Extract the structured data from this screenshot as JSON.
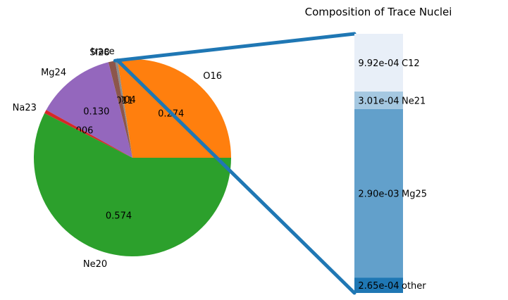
{
  "chart_data": [
    {
      "type": "pie",
      "labels": [
        "O16",
        "trace",
        "Si28",
        "Mg24",
        "Na23",
        "Ne20"
      ],
      "values": [
        0.274,
        0.004,
        0.011,
        0.13,
        0.006,
        0.574
      ],
      "value_labels": [
        "0.274",
        "0.004",
        "0.011",
        "0.130",
        "0.006",
        "0.574"
      ],
      "colors": [
        "#ff7f0e",
        "#8c8c8c",
        "#8c564b",
        "#9467bd",
        "#d62728",
        "#2ca02c"
      ],
      "start_angle_deg": 0,
      "direction": "counterclockwise"
    },
    {
      "type": "bar",
      "stacked": true,
      "title": "Composition of Trace Nuclei",
      "categories": [
        "other",
        "Mg25",
        "Ne21",
        "C12"
      ],
      "values": [
        0.000265,
        0.0029,
        0.000301,
        0.000992
      ],
      "value_labels": [
        "2.65e-04",
        "2.90e-03",
        "3.01e-04",
        "9.92e-04"
      ],
      "colors": [
        "#1f77b4",
        "#62a0cb",
        "#a5c8e1",
        "#e8eff8"
      ],
      "connector_color": "#1f77b4"
    }
  ]
}
